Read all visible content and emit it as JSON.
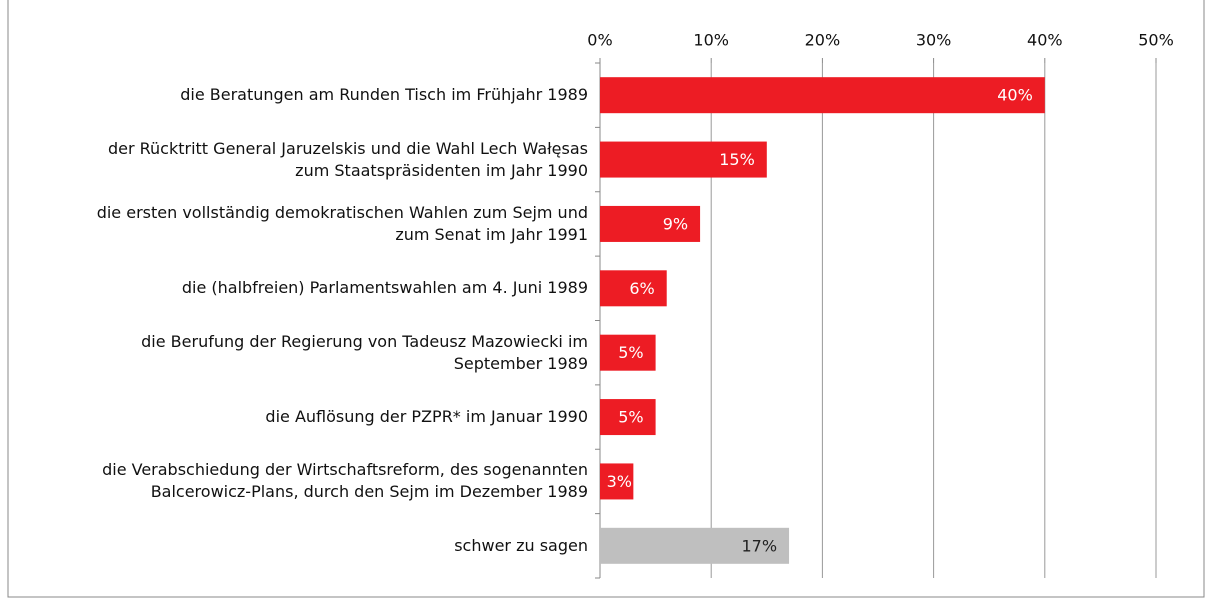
{
  "chart_data": {
    "type": "bar",
    "orientation": "horizontal",
    "categories": [
      "die Beratungen am Runden Tisch im Frühjahr 1989",
      "der Rücktritt General Jaruzelskis und die Wahl Lech Wałęsas\nzum Staatspräsidenten im Jahr 1990",
      "die ersten vollständig demokratischen Wahlen zum Sejm und\nzum Senat im Jahr 1991",
      "die (halbfreien) Parlamentswahlen am 4. Juni 1989",
      "die Berufung der Regierung von Tadeusz Mazowiecki im\nSeptember 1989",
      "die Auflösung der PZPR* im Januar 1990",
      "die Verabschiedung der Wirtschaftsreform, des sogenannten\nBalcerowicz-Plans, durch den Sejm im Dezember 1989",
      "schwer zu sagen"
    ],
    "values": [
      40,
      15,
      9,
      6,
      5,
      5,
      3,
      17
    ],
    "value_labels": [
      "40%",
      "15%",
      "9%",
      "6%",
      "5%",
      "5%",
      "3%",
      "17%"
    ],
    "colors": [
      "#ed1c24",
      "#ed1c24",
      "#ed1c24",
      "#ed1c24",
      "#ed1c24",
      "#ed1c24",
      "#ed1c24",
      "#bfbfbf"
    ],
    "value_label_colors": [
      "#ffffff",
      "#ffffff",
      "#ffffff",
      "#ffffff",
      "#ffffff",
      "#ffffff",
      "#ffffff",
      "#222222"
    ],
    "xlim": [
      0,
      50
    ],
    "xticks": [
      {
        "value": 0,
        "label": "0%"
      },
      {
        "value": 10,
        "label": "10%"
      },
      {
        "value": 20,
        "label": "20%"
      },
      {
        "value": 30,
        "label": "30%"
      },
      {
        "value": 40,
        "label": "40%"
      },
      {
        "value": 50,
        "label": "50%"
      }
    ],
    "grid": true
  }
}
